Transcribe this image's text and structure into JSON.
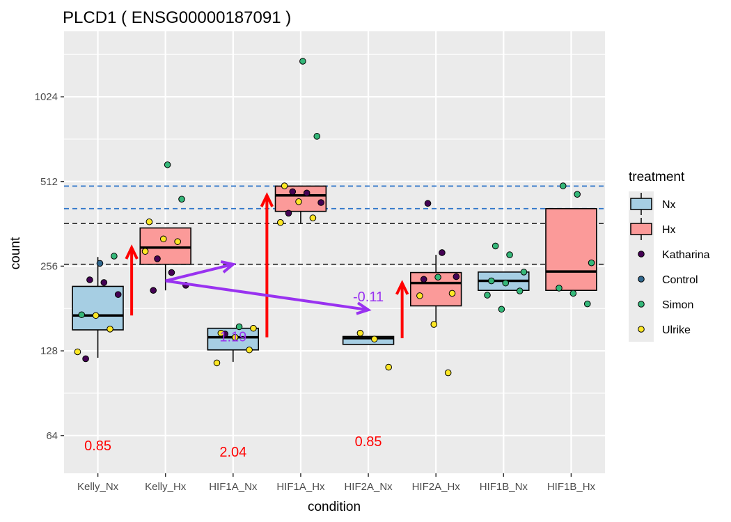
{
  "chart_data": {
    "type": "box",
    "title": "PLCD1 ( ENSG00000187091 )",
    "xlabel": "condition",
    "ylabel": "count",
    "y_scale": "log2",
    "ylim": [
      47,
      1750
    ],
    "y_ticks": [
      64,
      128,
      256,
      512,
      1024
    ],
    "y_tick_labels": [
      "64",
      "128",
      "256",
      "512",
      "1024"
    ],
    "categories": [
      "Kelly_Nx",
      "Kelly_Hx",
      "HIF1A_Nx",
      "HIF1A_Hx",
      "HIF2A_Nx",
      "HIF2A_Hx",
      "HIF1B_Nx",
      "HIF1B_Hx"
    ],
    "box_treatment": [
      "Nx",
      "Hx",
      "Nx",
      "Hx",
      "Nx",
      "Hx",
      "Nx",
      "Hx"
    ],
    "boxes": [
      {
        "category": "Kelly_Nx",
        "lower_whisker": 121,
        "q1": 152,
        "median": 171,
        "q3": 217,
        "upper_whisker": 276
      },
      {
        "category": "Kelly_Hx",
        "lower_whisker": 210,
        "q1": 260,
        "median": 298,
        "q3": 350,
        "upper_whisker": 350
      },
      {
        "category": "HIF1A_Nx",
        "lower_whisker": 117,
        "q1": 129,
        "median": 143,
        "q3": 154,
        "upper_whisker": 154
      },
      {
        "category": "HIF1A_Hx",
        "lower_whisker": 363,
        "q1": 401,
        "median": 457,
        "q3": 493,
        "upper_whisker": 493
      },
      {
        "category": "HIF2A_Nx",
        "lower_whisker": 135,
        "q1": 135,
        "median": 142,
        "q3": 144,
        "upper_whisker": 144
      },
      {
        "category": "HIF2A_Hx",
        "lower_whisker": 159,
        "q1": 185,
        "median": 223,
        "q3": 243,
        "upper_whisker": 281
      },
      {
        "category": "HIF1B_Nx",
        "lower_whisker": 210,
        "q1": 210,
        "median": 227,
        "q3": 244,
        "upper_whisker": 244
      },
      {
        "category": "HIF1B_Hx",
        "lower_whisker": 210,
        "q1": 210,
        "median": 245,
        "q3": 410,
        "upper_whisker": 410
      }
    ],
    "points": [
      {
        "category": "Kelly_Nx",
        "y": 229,
        "group": "Katharina"
      },
      {
        "category": "Kelly_Nx",
        "y": 224,
        "group": "Katharina"
      },
      {
        "category": "Kelly_Nx",
        "y": 203,
        "group": "Katharina"
      },
      {
        "category": "Kelly_Nx",
        "y": 120,
        "group": "Katharina"
      },
      {
        "category": "Kelly_Nx",
        "y": 262,
        "group": "Control"
      },
      {
        "category": "Kelly_Nx",
        "y": 278,
        "group": "Simon"
      },
      {
        "category": "Kelly_Nx",
        "y": 172,
        "group": "Simon"
      },
      {
        "category": "Kelly_Nx",
        "y": 171,
        "group": "Ulrike"
      },
      {
        "category": "Kelly_Nx",
        "y": 153,
        "group": "Ulrike"
      },
      {
        "category": "Kelly_Nx",
        "y": 127,
        "group": "Ulrike"
      },
      {
        "category": "Kelly_Hx",
        "y": 272,
        "group": "Katharina"
      },
      {
        "category": "Kelly_Hx",
        "y": 243,
        "group": "Katharina"
      },
      {
        "category": "Kelly_Hx",
        "y": 219,
        "group": "Katharina"
      },
      {
        "category": "Kelly_Hx",
        "y": 210,
        "group": "Katharina"
      },
      {
        "category": "Kelly_Hx",
        "y": 587,
        "group": "Simon"
      },
      {
        "category": "Kelly_Hx",
        "y": 443,
        "group": "Simon"
      },
      {
        "category": "Kelly_Hx",
        "y": 368,
        "group": "Ulrike"
      },
      {
        "category": "Kelly_Hx",
        "y": 320,
        "group": "Ulrike"
      },
      {
        "category": "Kelly_Hx",
        "y": 313,
        "group": "Ulrike"
      },
      {
        "category": "Kelly_Hx",
        "y": 289,
        "group": "Ulrike"
      },
      {
        "category": "HIF1A_Nx",
        "y": 147,
        "group": "Katharina"
      },
      {
        "category": "HIF1A_Nx",
        "y": 156,
        "group": "Simon"
      },
      {
        "category": "HIF1A_Nx",
        "y": 154,
        "group": "Ulrike"
      },
      {
        "category": "HIF1A_Nx",
        "y": 148,
        "group": "Ulrike"
      },
      {
        "category": "HIF1A_Nx",
        "y": 143,
        "group": "Ulrike"
      },
      {
        "category": "HIF1A_Nx",
        "y": 129,
        "group": "Ulrike"
      },
      {
        "category": "HIF1A_Nx",
        "y": 116,
        "group": "Ulrike"
      },
      {
        "category": "HIF1A_Hx",
        "y": 471,
        "group": "Katharina"
      },
      {
        "category": "HIF1A_Hx",
        "y": 466,
        "group": "Katharina"
      },
      {
        "category": "HIF1A_Hx",
        "y": 431,
        "group": "Katharina"
      },
      {
        "category": "HIF1A_Hx",
        "y": 395,
        "group": "Katharina"
      },
      {
        "category": "HIF1A_Hx",
        "y": 1370,
        "group": "Simon"
      },
      {
        "category": "HIF1A_Hx",
        "y": 741,
        "group": "Simon"
      },
      {
        "category": "HIF1A_Hx",
        "y": 494,
        "group": "Ulrike"
      },
      {
        "category": "HIF1A_Hx",
        "y": 434,
        "group": "Ulrike"
      },
      {
        "category": "HIF1A_Hx",
        "y": 380,
        "group": "Ulrike"
      },
      {
        "category": "HIF1A_Hx",
        "y": 366,
        "group": "Ulrike"
      },
      {
        "category": "HIF2A_Nx",
        "y": 148,
        "group": "Ulrike"
      },
      {
        "category": "HIF2A_Nx",
        "y": 141,
        "group": "Ulrike"
      },
      {
        "category": "HIF2A_Nx",
        "y": 112,
        "group": "Ulrike"
      },
      {
        "category": "HIF2A_Hx",
        "y": 428,
        "group": "Katharina"
      },
      {
        "category": "HIF2A_Hx",
        "y": 286,
        "group": "Katharina"
      },
      {
        "category": "HIF2A_Hx",
        "y": 235,
        "group": "Katharina"
      },
      {
        "category": "HIF2A_Hx",
        "y": 230,
        "group": "Katharina"
      },
      {
        "category": "HIF2A_Hx",
        "y": 234,
        "group": "Simon"
      },
      {
        "category": "HIF2A_Hx",
        "y": 205,
        "group": "Ulrike"
      },
      {
        "category": "HIF2A_Hx",
        "y": 201,
        "group": "Ulrike"
      },
      {
        "category": "HIF2A_Hx",
        "y": 159,
        "group": "Ulrike"
      },
      {
        "category": "HIF2A_Hx",
        "y": 107,
        "group": "Ulrike"
      },
      {
        "category": "HIF1B_Nx",
        "y": 302,
        "group": "Simon"
      },
      {
        "category": "HIF1B_Nx",
        "y": 281,
        "group": "Simon"
      },
      {
        "category": "HIF1B_Nx",
        "y": 244,
        "group": "Simon"
      },
      {
        "category": "HIF1B_Nx",
        "y": 227,
        "group": "Simon"
      },
      {
        "category": "HIF1B_Nx",
        "y": 223,
        "group": "Simon"
      },
      {
        "category": "HIF1B_Nx",
        "y": 209,
        "group": "Simon"
      },
      {
        "category": "HIF1B_Nx",
        "y": 202,
        "group": "Simon"
      },
      {
        "category": "HIF1B_Nx",
        "y": 180,
        "group": "Simon"
      },
      {
        "category": "HIF1B_Hx",
        "y": 494,
        "group": "Simon"
      },
      {
        "category": "HIF1B_Hx",
        "y": 461,
        "group": "Simon"
      },
      {
        "category": "HIF1B_Hx",
        "y": 263,
        "group": "Simon"
      },
      {
        "category": "HIF1B_Hx",
        "y": 214,
        "group": "Simon"
      },
      {
        "category": "HIF1B_Hx",
        "y": 205,
        "group": "Simon"
      },
      {
        "category": "HIF1B_Hx",
        "y": 188,
        "group": "Simon"
      }
    ],
    "reference_lines": [
      {
        "y": 493,
        "style": "dashed",
        "color": "#2e75c9"
      },
      {
        "y": 410,
        "style": "dashed",
        "color": "#2e75c9"
      },
      {
        "y": 363,
        "style": "dashed",
        "color": "#333333"
      },
      {
        "y": 260,
        "style": "dashed",
        "color": "#333333"
      }
    ],
    "arrows": [
      {
        "from_category": "Kelly_Nx",
        "to_category": "Kelly_Hx",
        "from_y": 171,
        "to_y": 298,
        "color": "#ff0000"
      },
      {
        "from_category": "HIF1A_Nx",
        "to_category": "HIF1A_Hx",
        "from_y": 143,
        "to_y": 457,
        "color": "#ff0000"
      },
      {
        "from_category": "HIF2A_Nx",
        "to_category": "HIF2A_Hx",
        "from_y": 142,
        "to_y": 223,
        "color": "#ff0000"
      },
      {
        "from_category": "Kelly_Hx",
        "to_category": "HIF1A_Nx",
        "from_y": 227,
        "to_y": 260,
        "color": "#9932f0"
      },
      {
        "from_category": "Kelly_Hx",
        "to_category": "HIF2A_Nx",
        "from_y": 227,
        "to_y": 179,
        "color": "#9932f0"
      }
    ],
    "annotations": [
      {
        "text": "0.85",
        "category": "Kelly_Nx",
        "y": 59,
        "color": "#ff0000"
      },
      {
        "text": "2.04",
        "category": "HIF1A_Nx",
        "y": 56,
        "color": "#ff0000"
      },
      {
        "text": "0.85",
        "category": "HIF2A_Nx",
        "y": 61,
        "color": "#ff0000"
      },
      {
        "text": "1.19",
        "category": "HIF1A_Nx",
        "y": 144,
        "color": "#9932f0"
      },
      {
        "text": "-0.11",
        "category": "HIF2A_Nx",
        "y": 200,
        "color": "#9932f0"
      }
    ],
    "legend": {
      "title": "treatment",
      "placement": "right",
      "fill_items": [
        {
          "label": "Nx",
          "color": "#a6cee3"
        },
        {
          "label": "Hx",
          "color": "#fb9a99"
        }
      ],
      "point_items": [
        {
          "label": "Katharina",
          "color": "#440154"
        },
        {
          "label": "Control",
          "color": "#31688e"
        },
        {
          "label": "Simon",
          "color": "#35b779"
        },
        {
          "label": "Ulrike",
          "color": "#fde725"
        }
      ]
    },
    "colors": {
      "panel_background": "#ebebeb",
      "grid": "#ffffff",
      "Nx_fill": "#a6cee3",
      "Hx_fill": "#fb9a99"
    },
    "grid": true
  }
}
